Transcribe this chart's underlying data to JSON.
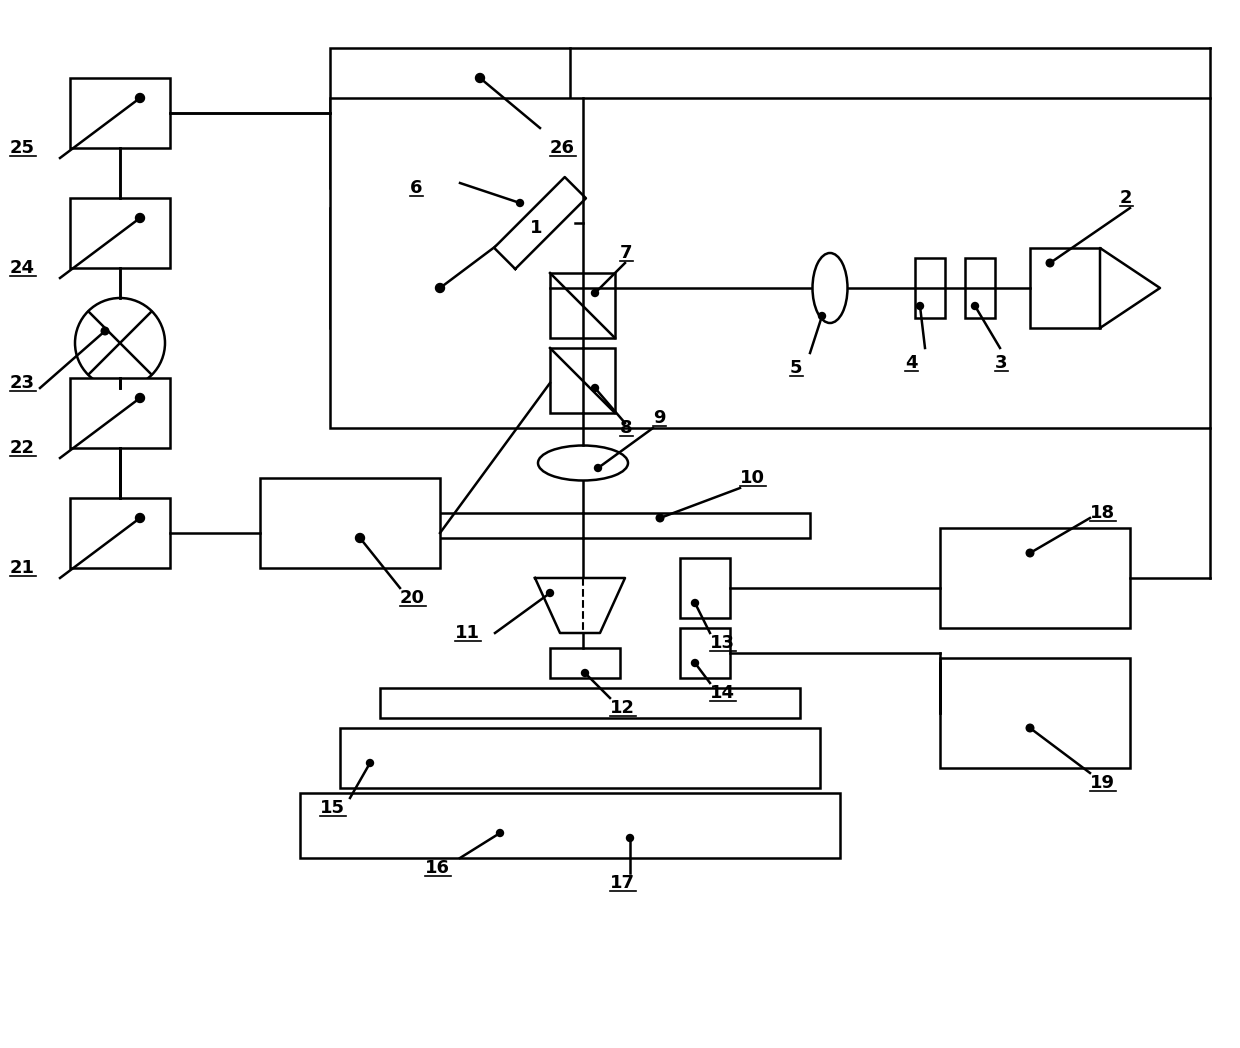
{
  "bg_color": "#ffffff",
  "line_color": "#000000",
  "lw": 1.8,
  "fs": 13
}
